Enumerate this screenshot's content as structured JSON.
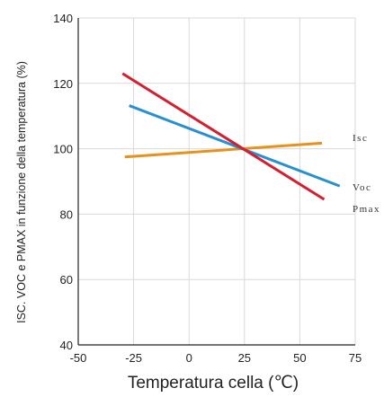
{
  "chart_data": {
    "type": "line",
    "xlabel": "Temperatura cella (℃)",
    "ylabel": "ISC. VOC e PMAX in funzione della temperatura (%)",
    "xlim": [
      -50,
      75
    ],
    "ylim": [
      40,
      140
    ],
    "x_ticks": [
      "-50",
      "-25",
      "0",
      "25",
      "50",
      "75"
    ],
    "y_ticks": [
      "40",
      "60",
      "80",
      "100",
      "120",
      "140"
    ],
    "grid": true,
    "series": [
      {
        "name": "Isc",
        "color": "#e8921e",
        "x": [
          -29,
          60
        ],
        "y": [
          97.5,
          101.7
        ]
      },
      {
        "name": "Voc",
        "color": "#2a8fd0",
        "x": [
          -27,
          68
        ],
        "y": [
          113.2,
          88.6
        ]
      },
      {
        "name": "Pmax",
        "color": "#d41f30",
        "x": [
          -30,
          61
        ],
        "y": [
          123,
          84.5
        ]
      }
    ]
  }
}
